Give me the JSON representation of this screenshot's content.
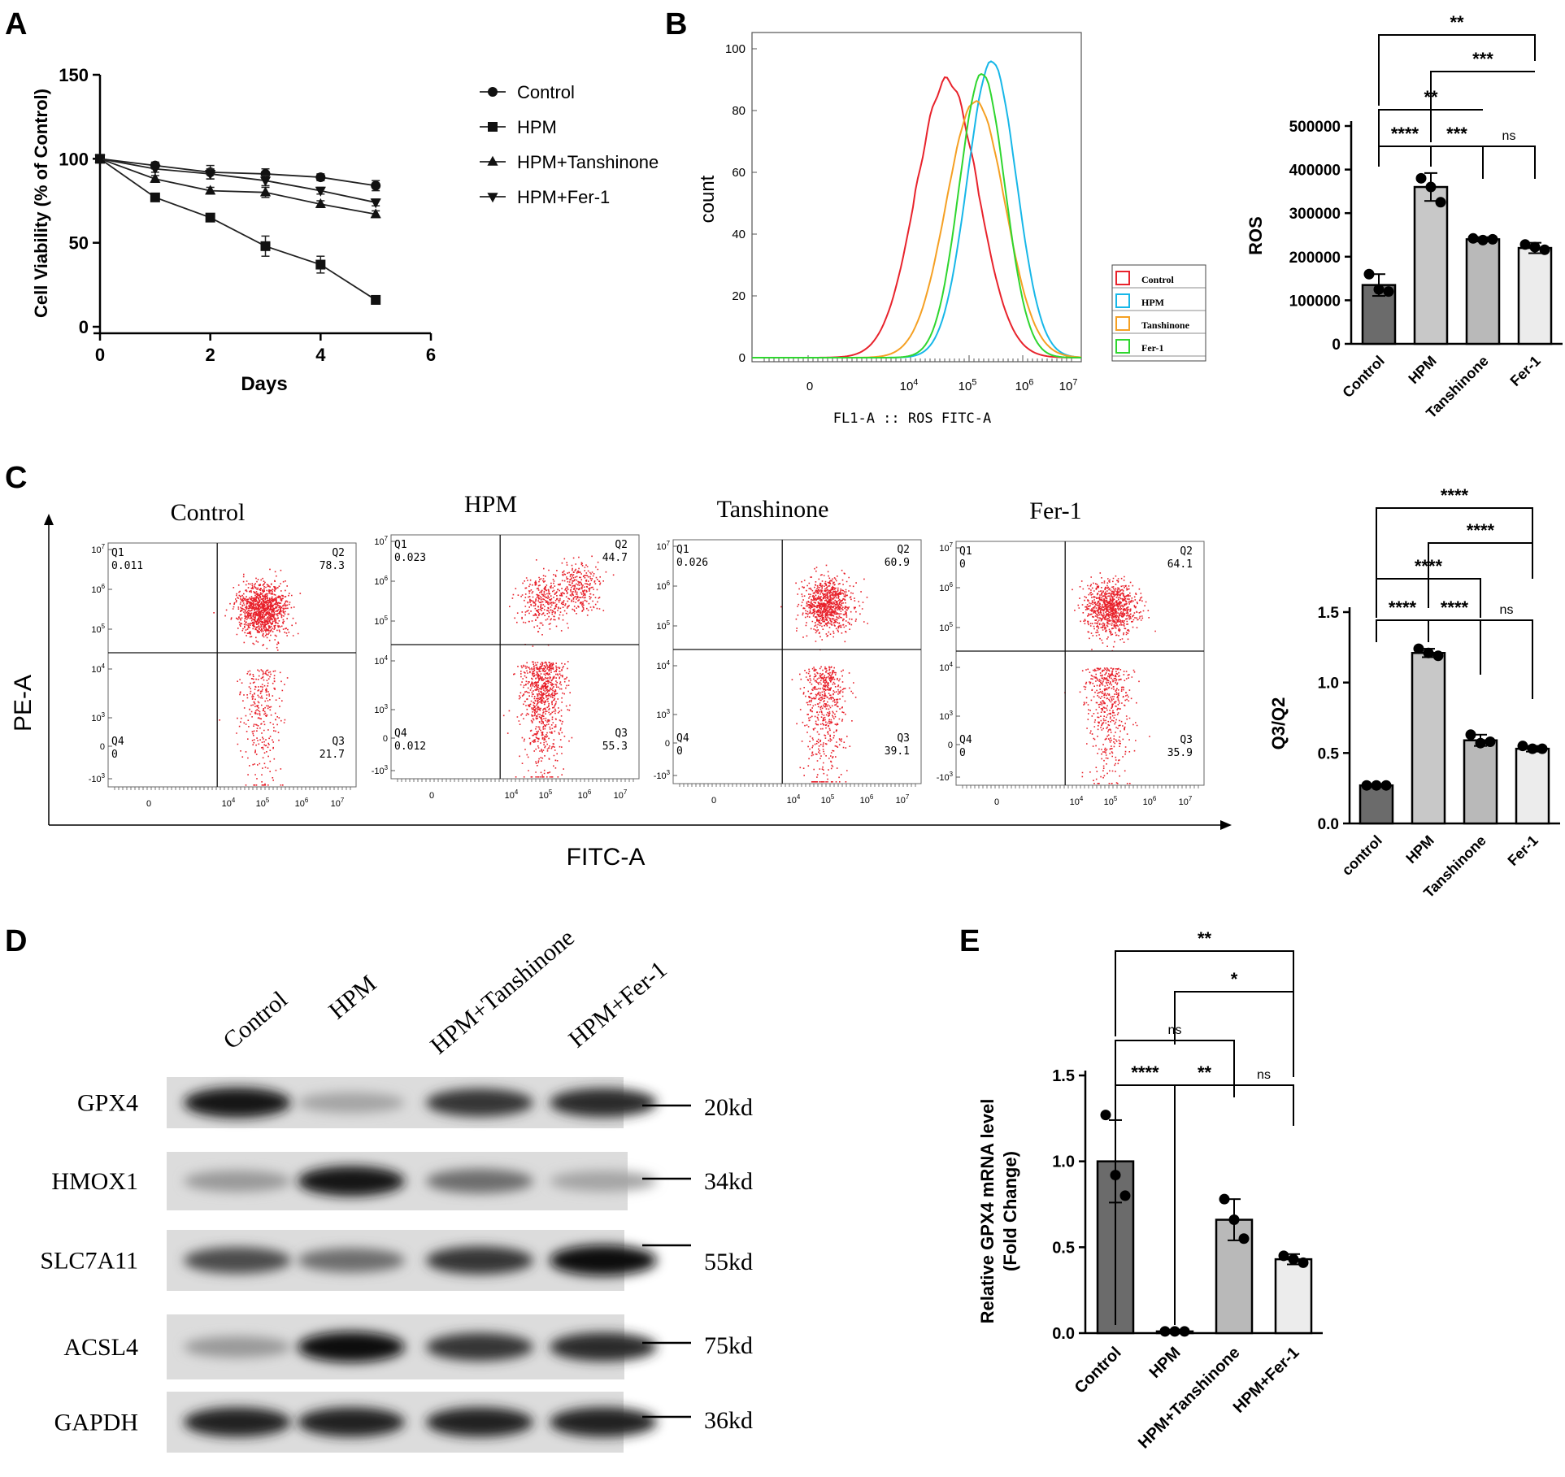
{
  "panels": {
    "A": {
      "letter": "A"
    },
    "B": {
      "letter": "B"
    },
    "C": {
      "letter": "C"
    },
    "D": {
      "letter": "D"
    },
    "E": {
      "letter": "E"
    }
  },
  "chart_data": [
    {
      "id": "A",
      "type": "line",
      "xlabel": "Days",
      "ylabel": "Cell Viability  (% of Control)",
      "xlim": [
        0,
        6
      ],
      "ylim": [
        0,
        150
      ],
      "xticks": [
        "0",
        "2",
        "4",
        "6"
      ],
      "yticks": [
        "0",
        "50",
        "100",
        "150"
      ],
      "legend_position": "right",
      "series": [
        {
          "name": "Control",
          "marker": "circle",
          "x": [
            0,
            1,
            2,
            3,
            4,
            5
          ],
          "y": [
            100,
            96,
            92,
            91,
            89,
            84
          ],
          "err": [
            0,
            2,
            4,
            3,
            2,
            3
          ]
        },
        {
          "name": "HPM",
          "marker": "square",
          "x": [
            0,
            1,
            2,
            3,
            4,
            5
          ],
          "y": [
            100,
            77,
            65,
            48,
            37,
            16
          ],
          "err": [
            0,
            2,
            2,
            6,
            5,
            2
          ]
        },
        {
          "name": "HPM+Tanshinone",
          "marker": "triangle-up",
          "x": [
            0,
            1,
            2,
            3,
            4,
            5
          ],
          "y": [
            100,
            88,
            81,
            80,
            73,
            67
          ],
          "err": [
            0,
            2,
            2,
            3,
            2,
            2
          ]
        },
        {
          "name": "HPM+Fer-1",
          "marker": "triangle-down",
          "x": [
            0,
            1,
            2,
            3,
            4,
            5
          ],
          "y": [
            100,
            94,
            91,
            87,
            81,
            74
          ],
          "err": [
            0,
            2,
            3,
            3,
            2,
            2
          ]
        }
      ]
    },
    {
      "id": "B-histogram",
      "type": "line",
      "xlabel": "FL1-A :: ROS FITC-A",
      "ylabel": "count",
      "yticks": [
        "0",
        "20",
        "40",
        "60",
        "80",
        "100"
      ],
      "xticks": [
        "0",
        "10^4",
        "10^5",
        "10^6",
        "10^7"
      ],
      "legend_position": "right",
      "series": [
        {
          "name": "Control",
          "color": "#e8232c",
          "peak_log10": 4.7,
          "peak_count": 90
        },
        {
          "name": "HPM",
          "color": "#17b7e8",
          "peak_log10": 5.3,
          "peak_count": 96
        },
        {
          "name": "Tanshinone",
          "color": "#f5a023",
          "peak_log10": 5.2,
          "peak_count": 83
        },
        {
          "name": "Fer-1",
          "color": "#2fd62f",
          "peak_log10": 5.25,
          "peak_count": 92
        }
      ]
    },
    {
      "id": "B-bar",
      "type": "bar",
      "ylabel": "ROS",
      "ylim": [
        0,
        500000
      ],
      "yticks": [
        "0",
        "100000",
        "200000",
        "300000",
        "400000",
        "500000"
      ],
      "categories": [
        "Control",
        "HPM",
        "Tanshinone",
        "Fer-1"
      ],
      "values": [
        135000,
        360000,
        240000,
        220000
      ],
      "err": [
        25000,
        32000,
        5000,
        12000
      ],
      "points": [
        [
          160000,
          125000,
          120000
        ],
        [
          380000,
          360000,
          325000
        ],
        [
          242000,
          238000,
          240000
        ],
        [
          228000,
          222000,
          216000
        ]
      ],
      "colors": [
        "#6b6b6b",
        "#c8c8c8",
        "#b9b9b9",
        "#ececec"
      ],
      "significance": [
        {
          "from": 0,
          "to": 3,
          "label": "**"
        },
        {
          "from": 1,
          "to": 3,
          "label": "***"
        },
        {
          "from": 0,
          "to": 2,
          "label": "**"
        },
        {
          "from": 0,
          "to": 1,
          "label": "****"
        },
        {
          "from": 1,
          "to": 2,
          "label": "***"
        },
        {
          "from": 2,
          "to": 3,
          "label": "ns"
        }
      ]
    },
    {
      "id": "C-scatter",
      "type": "scatter",
      "xlabel": "FITC-A",
      "ylabel": "PE-A",
      "plots": [
        {
          "title": "Control",
          "q1": "0.011",
          "q2": "78.3",
          "q3": "21.7",
          "q4": "0"
        },
        {
          "title": "HPM",
          "q1": "0.023",
          "q2": "44.7",
          "q3": "55.3",
          "q4": "0.012"
        },
        {
          "title": "Tanshinone",
          "q1": "0.026",
          "q2": "60.9",
          "q3": "39.1",
          "q4": "0"
        },
        {
          "title": "Fer-1",
          "q1": "0",
          "q2": "64.1",
          "q3": "35.9",
          "q4": "0"
        }
      ],
      "quadrant_labels": [
        "Q1",
        "Q2",
        "Q3",
        "Q4"
      ],
      "yticks": [
        "10^7",
        "10^6",
        "10^5",
        "10^4",
        "10^3",
        "0",
        "-10^3"
      ],
      "xticks": [
        "0",
        "10^4",
        "10^5",
        "10^6",
        "10^7"
      ]
    },
    {
      "id": "C-bar",
      "type": "bar",
      "ylabel": "Q3/Q2",
      "ylim": [
        0,
        1.5
      ],
      "yticks": [
        "0.0",
        "0.5",
        "1.0",
        "1.5"
      ],
      "categories": [
        "control",
        "HPM",
        "Tanshinone",
        "Fer-1"
      ],
      "values": [
        0.27,
        1.21,
        0.59,
        0.53
      ],
      "err": [
        0.01,
        0.03,
        0.04,
        0.02
      ],
      "points": [
        [
          0.27,
          0.27,
          0.27
        ],
        [
          1.24,
          1.21,
          1.19
        ],
        [
          0.63,
          0.57,
          0.58
        ],
        [
          0.55,
          0.53,
          0.53
        ]
      ],
      "colors": [
        "#6b6b6b",
        "#c8c8c8",
        "#b9b9b9",
        "#ececec"
      ],
      "significance": [
        {
          "from": 0,
          "to": 3,
          "label": "****"
        },
        {
          "from": 1,
          "to": 3,
          "label": "****"
        },
        {
          "from": 0,
          "to": 2,
          "label": "****"
        },
        {
          "from": 0,
          "to": 1,
          "label": "****"
        },
        {
          "from": 1,
          "to": 2,
          "label": "****"
        },
        {
          "from": 2,
          "to": 3,
          "label": "ns"
        }
      ]
    },
    {
      "id": "D-blot",
      "type": "table",
      "lanes": [
        "Control",
        "HPM",
        "HPM+Tanshinone",
        "HPM+Fer-1"
      ],
      "rows": [
        {
          "protein": "GPX4",
          "marker": "20kd",
          "intensity": [
            0.95,
            0.3,
            0.8,
            0.85
          ]
        },
        {
          "protein": "HMOX1",
          "marker": "34kd",
          "intensity": [
            0.35,
            0.95,
            0.55,
            0.3
          ]
        },
        {
          "protein": "SLC7A11",
          "marker": "55kd",
          "intensity": [
            0.7,
            0.55,
            0.8,
            0.98
          ]
        },
        {
          "protein": "ACSL4",
          "marker": "75kd",
          "intensity": [
            0.35,
            0.98,
            0.8,
            0.85
          ]
        },
        {
          "protein": "GAPDH",
          "marker": "36kd",
          "intensity": [
            0.9,
            0.9,
            0.9,
            0.9
          ]
        }
      ]
    },
    {
      "id": "E",
      "type": "bar",
      "ylabel": "Relative GPX4 mRNA level",
      "ylabel2": "(Fold Change)",
      "ylim": [
        0,
        1.5
      ],
      "yticks": [
        "0.0",
        "0.5",
        "1.0",
        "1.5"
      ],
      "categories": [
        "Control",
        "HPM",
        "HPM+Tanshinone",
        "HPM+Fer-1"
      ],
      "values": [
        1.0,
        0.01,
        0.66,
        0.43
      ],
      "err": [
        0.24,
        0.0,
        0.12,
        0.03
      ],
      "points": [
        [
          1.27,
          0.92,
          0.8
        ],
        [
          0.01,
          0.01,
          0.01
        ],
        [
          0.78,
          0.66,
          0.55
        ],
        [
          0.45,
          0.43,
          0.41
        ]
      ],
      "colors": [
        "#6b6b6b",
        "#c8c8c8",
        "#b9b9b9",
        "#ececec"
      ],
      "significance": [
        {
          "from": 0,
          "to": 3,
          "label": "**"
        },
        {
          "from": 1,
          "to": 3,
          "label": "*"
        },
        {
          "from": 0,
          "to": 2,
          "label": "ns"
        },
        {
          "from": 0,
          "to": 1,
          "label": "****"
        },
        {
          "from": 1,
          "to": 2,
          "label": "**"
        },
        {
          "from": 2,
          "to": 3,
          "label": "ns"
        }
      ]
    }
  ]
}
